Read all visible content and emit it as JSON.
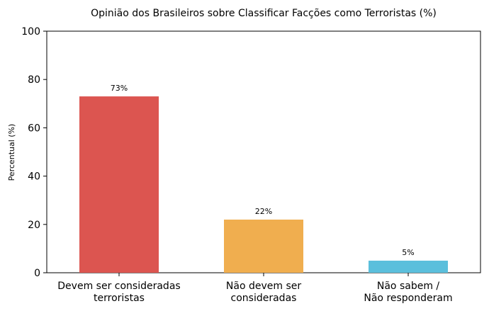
{
  "chart_data": {
    "type": "bar",
    "title": "Opinião dos Brasileiros sobre Classificar Facções como Terroristas (%)",
    "xlabel": "",
    "ylabel": "Percentual (%)",
    "ylim": [
      0,
      100
    ],
    "yticks": [
      0,
      20,
      40,
      60,
      80,
      100
    ],
    "categories": [
      [
        "Devem ser consideradas",
        "terroristas"
      ],
      [
        "Não devem ser",
        "consideradas"
      ],
      [
        "Não sabem /",
        "Não responderam"
      ]
    ],
    "values": [
      73,
      22,
      5
    ],
    "value_labels": [
      "73%",
      "22%",
      "5%"
    ],
    "colors": [
      "#dc5550",
      "#f0ae4f",
      "#5bbfdc"
    ],
    "grid": false,
    "legend": "none"
  }
}
